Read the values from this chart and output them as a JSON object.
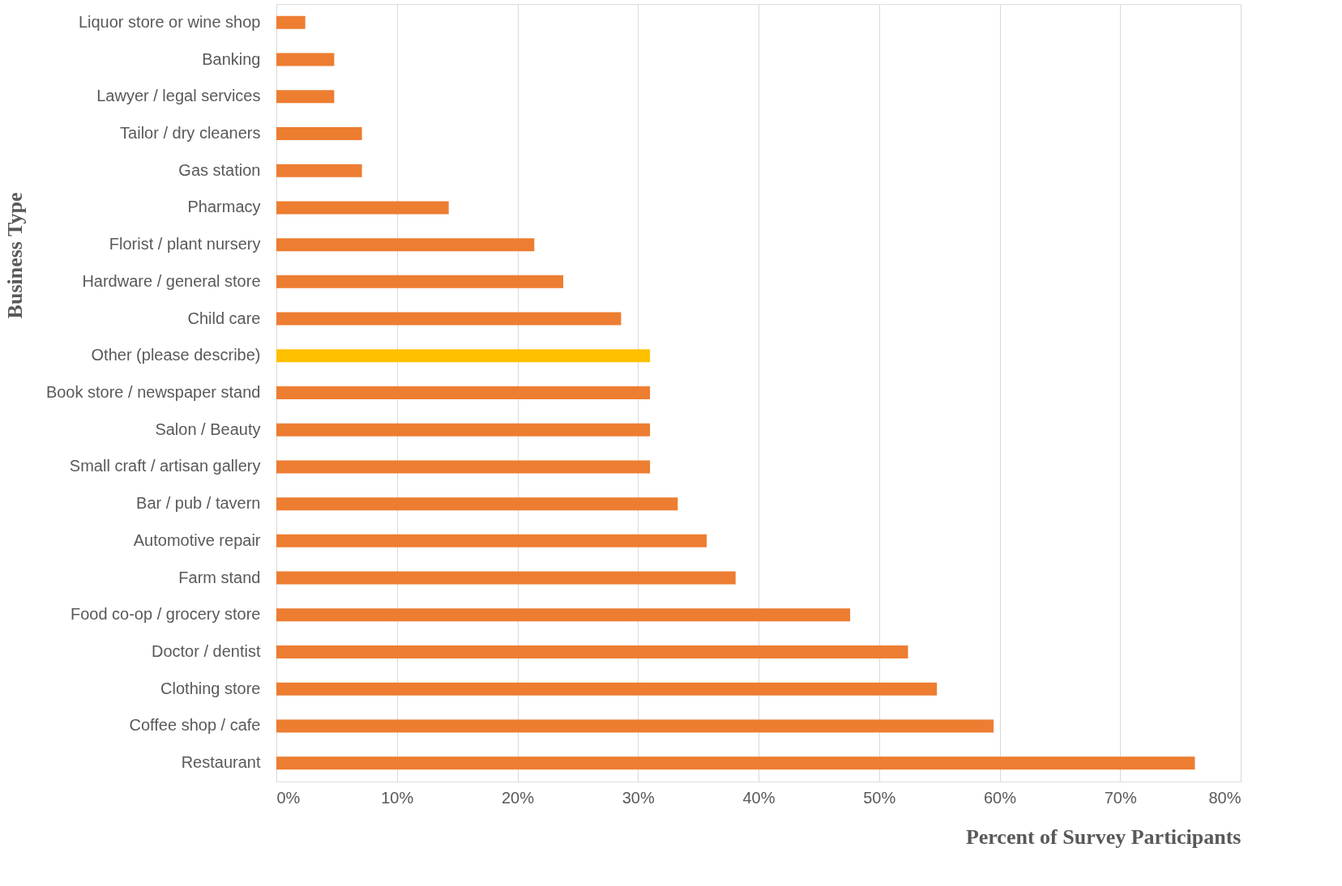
{
  "chart_data": {
    "type": "bar",
    "orientation": "horizontal",
    "xlabel": "Percent of Survey Participants",
    "ylabel": "Business Type",
    "categories": [
      "Liquor store or wine shop",
      "Banking",
      "Lawyer / legal services",
      "Tailor / dry cleaners",
      "Gas station",
      "Pharmacy",
      "Florist / plant nursery",
      "Hardware / general store",
      "Child care",
      "Other (please describe)",
      "Book store / newspaper stand",
      "Salon / Beauty",
      "Small craft / artisan gallery",
      "Bar / pub / tavern",
      "Automotive repair",
      "Farm stand",
      "Food co-op / grocery store",
      "Doctor / dentist",
      "Clothing store",
      "Coffee shop / cafe",
      "Restaurant"
    ],
    "values": [
      2.4,
      4.8,
      4.8,
      7.1,
      7.1,
      14.3,
      21.4,
      23.8,
      28.6,
      31.0,
      31.0,
      31.0,
      31.0,
      33.3,
      35.7,
      38.1,
      47.6,
      52.4,
      54.8,
      59.5,
      76.2
    ],
    "colors": [
      "#ed7d31",
      "#ed7d31",
      "#ed7d31",
      "#ed7d31",
      "#ed7d31",
      "#ed7d31",
      "#ed7d31",
      "#ed7d31",
      "#ed7d31",
      "#ffc000",
      "#ed7d31",
      "#ed7d31",
      "#ed7d31",
      "#ed7d31",
      "#ed7d31",
      "#ed7d31",
      "#ed7d31",
      "#ed7d31",
      "#ed7d31",
      "#ed7d31",
      "#ed7d31"
    ],
    "xlim": [
      0,
      80
    ],
    "xticks": [
      {
        "value": 0,
        "label": "0%"
      },
      {
        "value": 10,
        "label": "10%"
      },
      {
        "value": 20,
        "label": "20%"
      },
      {
        "value": 30,
        "label": "30%"
      },
      {
        "value": 40,
        "label": "40%"
      },
      {
        "value": 50,
        "label": "50%"
      },
      {
        "value": 60,
        "label": "60%"
      },
      {
        "value": 70,
        "label": "70%"
      },
      {
        "value": 80,
        "label": "80%"
      }
    ],
    "grid": "x"
  }
}
